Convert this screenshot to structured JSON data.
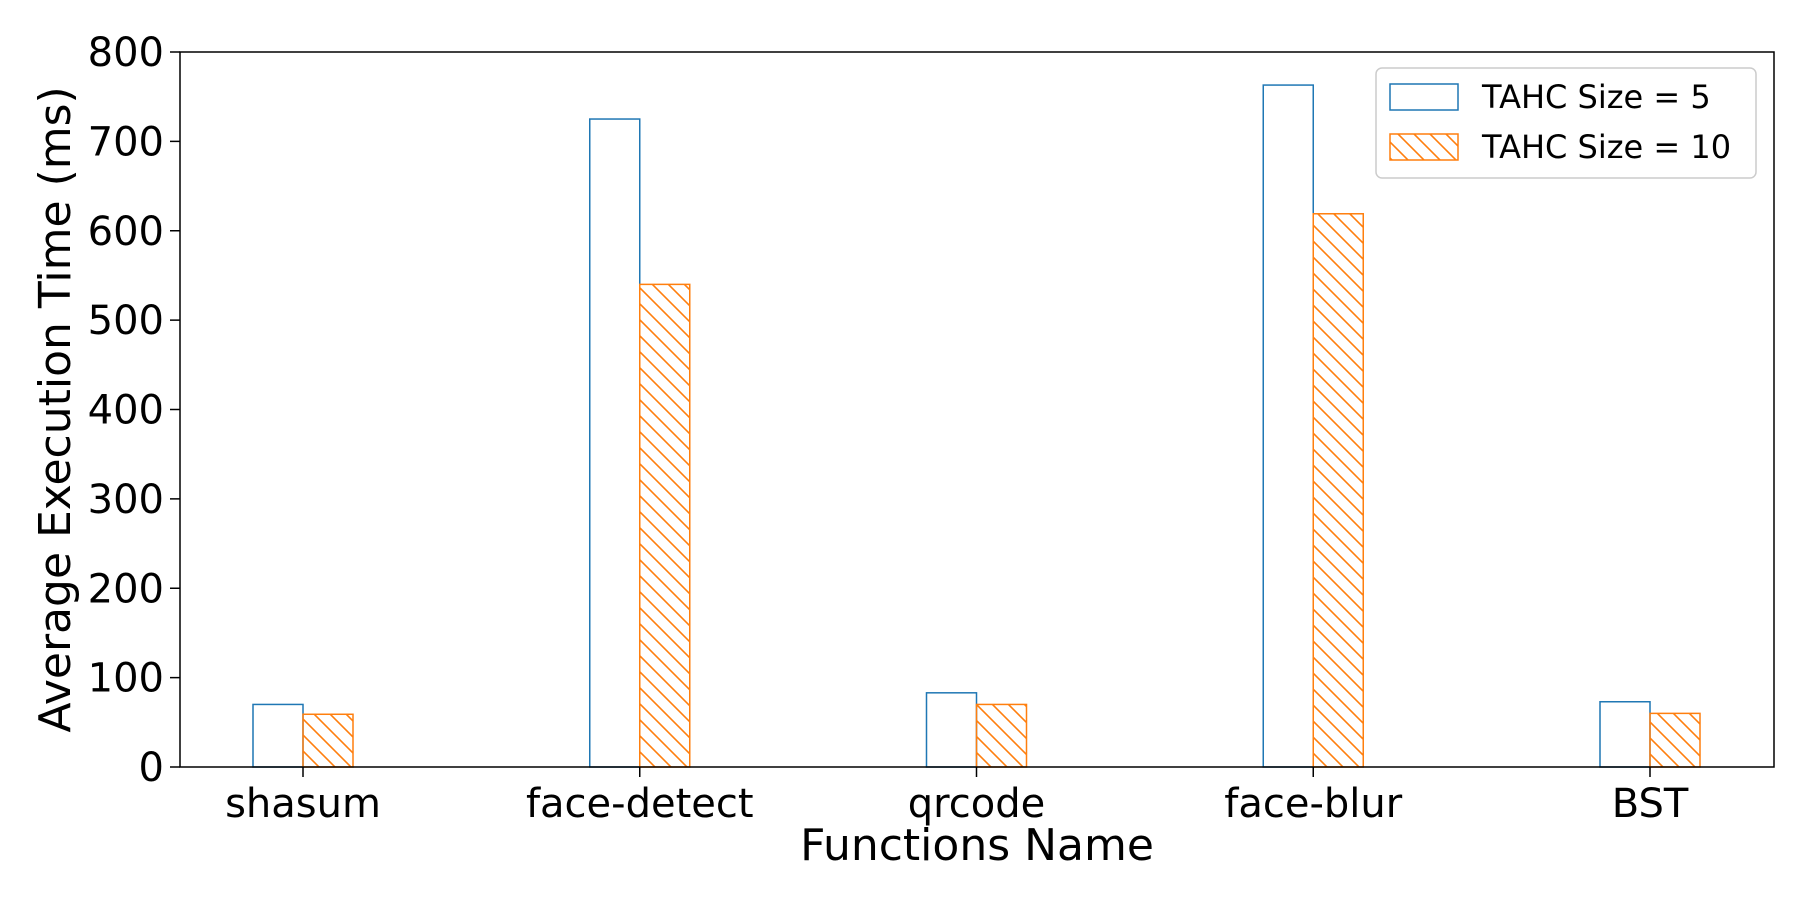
{
  "chart_data": {
    "type": "bar",
    "xlabel": "Functions Name",
    "ylabel": "Average Execution Time (ms)",
    "categories": [
      "shasum",
      "face-detect",
      "qrcode",
      "face-blur",
      "BST"
    ],
    "series": [
      {
        "name": "TAHC Size = 5",
        "values": [
          70,
          725,
          83,
          763,
          73
        ],
        "color": "#1f77b4",
        "fill": "none",
        "hatch": false
      },
      {
        "name": "TAHC Size = 10",
        "values": [
          59,
          540,
          70,
          619,
          60
        ],
        "color": "#ff7f0e",
        "fill": "hatched",
        "hatch": true
      }
    ],
    "ylim": [
      0,
      800
    ],
    "yticks": [
      0,
      100,
      200,
      300,
      400,
      500,
      600,
      700,
      800
    ],
    "grid": false,
    "legend_position": "top-right"
  }
}
